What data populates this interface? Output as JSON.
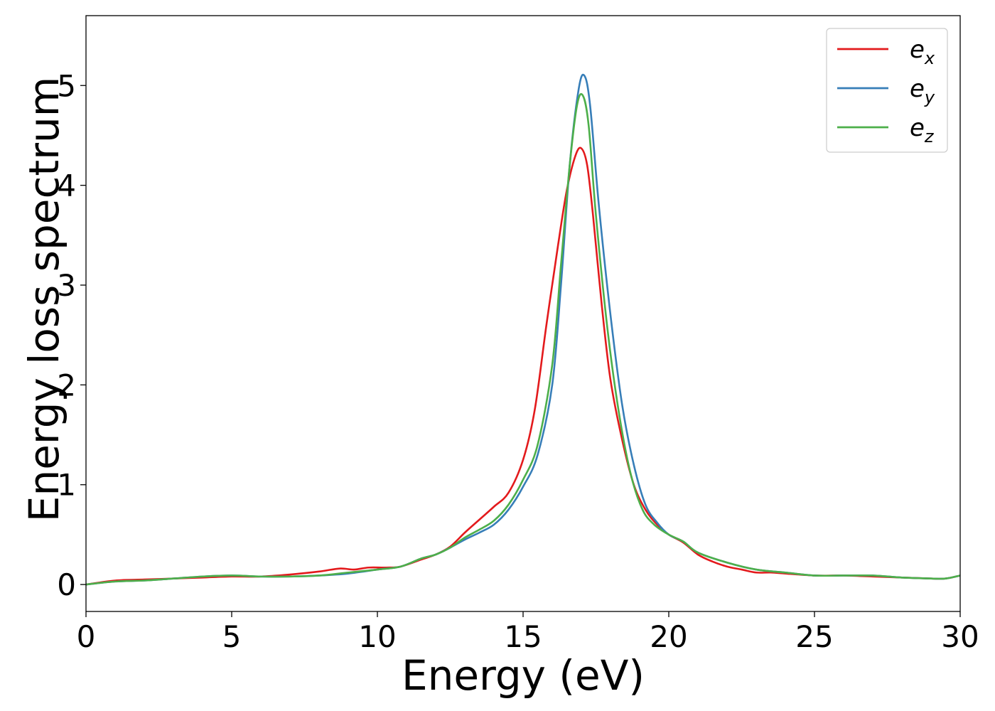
{
  "chart_data": {
    "type": "line",
    "title": "",
    "xlabel": "Energy (eV)",
    "ylabel": "Energy loss spectrum",
    "xlim": [
      0,
      30
    ],
    "ylim": [
      -0.27,
      5.7
    ],
    "xticks": [
      0,
      5,
      10,
      15,
      20,
      25,
      30
    ],
    "xtick_labels": [
      "0",
      "5",
      "10",
      "15",
      "20",
      "25",
      "30"
    ],
    "yticks": [
      0,
      1,
      2,
      3,
      4,
      5
    ],
    "ytick_labels": [
      "0",
      "1",
      "2",
      "3",
      "4",
      "5"
    ],
    "grid": false,
    "legend_position": "top-right",
    "series": [
      {
        "name": "e_x",
        "label_main": "e",
        "label_sub": "x",
        "color": "#e31a1c",
        "x": [
          0,
          1,
          2,
          3,
          4,
          5,
          6,
          7,
          8,
          8.7,
          9.2,
          9.7,
          10.3,
          10.8,
          11.5,
          12,
          12.5,
          13,
          13.5,
          14,
          14.5,
          15,
          15.4,
          15.8,
          16.2,
          16.5,
          16.8,
          17.0,
          17.2,
          17.4,
          17.7,
          18,
          18.4,
          18.8,
          19.2,
          19.6,
          20,
          20.5,
          21,
          21.5,
          22,
          22.5,
          23,
          23.5,
          24,
          25,
          26,
          27,
          28,
          29,
          29.5,
          30
        ],
        "y": [
          0,
          0.04,
          0.05,
          0.06,
          0.07,
          0.08,
          0.08,
          0.1,
          0.13,
          0.16,
          0.15,
          0.17,
          0.17,
          0.18,
          0.25,
          0.3,
          0.38,
          0.52,
          0.65,
          0.78,
          0.92,
          1.25,
          1.75,
          2.6,
          3.4,
          3.95,
          4.3,
          4.37,
          4.2,
          3.7,
          2.8,
          2.05,
          1.45,
          1.0,
          0.75,
          0.6,
          0.5,
          0.42,
          0.3,
          0.23,
          0.18,
          0.15,
          0.12,
          0.12,
          0.11,
          0.09,
          0.09,
          0.08,
          0.07,
          0.06,
          0.06,
          0.09
        ]
      },
      {
        "name": "e_y",
        "label_main": "e",
        "label_sub": "y",
        "color": "#377eb8",
        "x": [
          0,
          1,
          2,
          3,
          4,
          5,
          6,
          7,
          8,
          9,
          10,
          10.8,
          11.5,
          12,
          12.5,
          13,
          13.5,
          14,
          14.5,
          15,
          15.5,
          16,
          16.3,
          16.6,
          16.9,
          17.1,
          17.3,
          17.6,
          18,
          18.4,
          18.8,
          19.2,
          19.6,
          20,
          20.5,
          21,
          22,
          23,
          24,
          25,
          26,
          27,
          28,
          29,
          29.5,
          30
        ],
        "y": [
          0,
          0.03,
          0.04,
          0.06,
          0.08,
          0.09,
          0.08,
          0.08,
          0.09,
          0.11,
          0.15,
          0.18,
          0.26,
          0.3,
          0.37,
          0.45,
          0.52,
          0.6,
          0.75,
          0.98,
          1.3,
          2.0,
          3.0,
          4.2,
          4.95,
          5.1,
          4.8,
          3.8,
          2.7,
          1.8,
          1.2,
          0.8,
          0.62,
          0.5,
          0.43,
          0.32,
          0.22,
          0.15,
          0.12,
          0.09,
          0.09,
          0.09,
          0.07,
          0.06,
          0.06,
          0.09
        ]
      },
      {
        "name": "e_z",
        "label_main": "e",
        "label_sub": "z",
        "color": "#4daf4a",
        "x": [
          0,
          1,
          2,
          3,
          4,
          5,
          6,
          7,
          8,
          9,
          10,
          10.8,
          11.5,
          12,
          12.5,
          13,
          13.5,
          14,
          14.5,
          15,
          15.5,
          16,
          16.3,
          16.6,
          16.85,
          17.05,
          17.25,
          17.5,
          17.9,
          18.3,
          18.7,
          19.1,
          19.5,
          20,
          20.5,
          21,
          22,
          23,
          24,
          25,
          26,
          27,
          28,
          29,
          29.5,
          30
        ],
        "y": [
          0,
          0.03,
          0.04,
          0.06,
          0.08,
          0.09,
          0.08,
          0.08,
          0.09,
          0.12,
          0.15,
          0.18,
          0.26,
          0.3,
          0.37,
          0.47,
          0.55,
          0.64,
          0.8,
          1.05,
          1.4,
          2.2,
          3.2,
          4.2,
          4.8,
          4.9,
          4.6,
          3.7,
          2.55,
          1.7,
          1.1,
          0.75,
          0.6,
          0.5,
          0.43,
          0.32,
          0.22,
          0.15,
          0.12,
          0.09,
          0.09,
          0.09,
          0.07,
          0.06,
          0.06,
          0.09
        ]
      }
    ]
  }
}
